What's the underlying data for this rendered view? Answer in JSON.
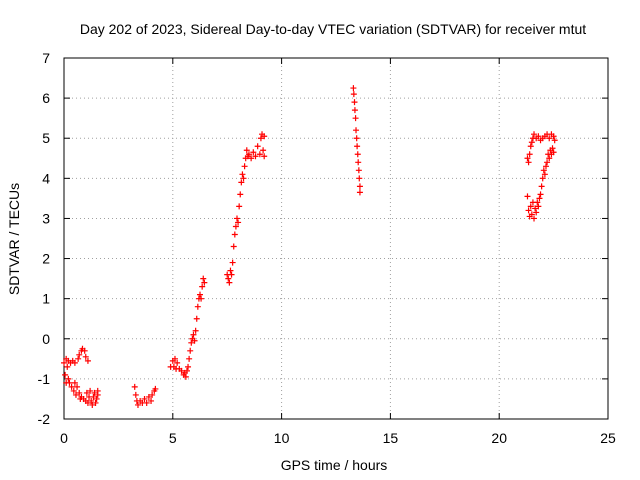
{
  "chart_data": {
    "type": "scatter",
    "title": "Day 202 of 2023, Sidereal Day-to-day VTEC variation (SDTVAR) for receiver mtut",
    "xlabel": "GPS time / hours",
    "ylabel": "SDTVAR / TECUs",
    "xlim": [
      0,
      25
    ],
    "ylim": [
      -2,
      7
    ],
    "xticks": [
      0,
      5,
      10,
      15,
      20,
      25
    ],
    "yticks": [
      -2,
      -1,
      0,
      1,
      2,
      3,
      4,
      5,
      6,
      7
    ],
    "grid": true,
    "marker": "plus",
    "color": "#ff0000",
    "series": [
      {
        "name": "SDTVAR",
        "points": [
          [
            0.0,
            -0.6
          ],
          [
            0.05,
            -0.9
          ],
          [
            0.1,
            -1.1
          ],
          [
            0.1,
            -0.5
          ],
          [
            0.15,
            -0.7
          ],
          [
            0.2,
            -1.0
          ],
          [
            0.2,
            -0.55
          ],
          [
            0.25,
            -1.1
          ],
          [
            0.3,
            -0.6
          ],
          [
            0.35,
            -1.2
          ],
          [
            0.4,
            -0.55
          ],
          [
            0.45,
            -1.3
          ],
          [
            0.5,
            -1.1
          ],
          [
            0.5,
            -0.6
          ],
          [
            0.55,
            -1.4
          ],
          [
            0.6,
            -1.2
          ],
          [
            0.65,
            -0.5
          ],
          [
            0.7,
            -1.35
          ],
          [
            0.7,
            -0.4
          ],
          [
            0.75,
            -1.5
          ],
          [
            0.8,
            -0.3
          ],
          [
            0.8,
            -1.45
          ],
          [
            0.85,
            -0.25
          ],
          [
            0.9,
            -1.5
          ],
          [
            0.95,
            -0.3
          ],
          [
            1.0,
            -1.55
          ],
          [
            1.0,
            -0.45
          ],
          [
            1.05,
            -1.35
          ],
          [
            1.1,
            -0.55
          ],
          [
            1.1,
            -1.6
          ],
          [
            1.15,
            -1.45
          ],
          [
            1.2,
            -1.3
          ],
          [
            1.25,
            -1.55
          ],
          [
            1.3,
            -1.65
          ],
          [
            1.35,
            -1.45
          ],
          [
            1.4,
            -1.35
          ],
          [
            1.45,
            -1.6
          ],
          [
            1.5,
            -1.5
          ],
          [
            1.55,
            -1.3
          ],
          [
            1.55,
            -1.4
          ],
          [
            3.25,
            -1.2
          ],
          [
            3.3,
            -1.4
          ],
          [
            3.35,
            -1.55
          ],
          [
            3.4,
            -1.65
          ],
          [
            3.5,
            -1.55
          ],
          [
            3.6,
            -1.6
          ],
          [
            3.7,
            -1.5
          ],
          [
            3.8,
            -1.6
          ],
          [
            3.9,
            -1.45
          ],
          [
            4.0,
            -1.55
          ],
          [
            4.05,
            -1.4
          ],
          [
            4.15,
            -1.3
          ],
          [
            4.2,
            -1.25
          ],
          [
            4.9,
            -0.7
          ],
          [
            5.0,
            -0.55
          ],
          [
            5.05,
            -0.7
          ],
          [
            5.1,
            -0.5
          ],
          [
            5.15,
            -0.75
          ],
          [
            5.2,
            -0.6
          ],
          [
            5.3,
            -0.75
          ],
          [
            5.4,
            -0.8
          ],
          [
            5.5,
            -0.9
          ],
          [
            5.55,
            -0.85
          ],
          [
            5.6,
            -0.95
          ],
          [
            5.65,
            -0.8
          ],
          [
            5.7,
            -0.7
          ],
          [
            5.75,
            -0.5
          ],
          [
            5.8,
            -0.3
          ],
          [
            5.85,
            -0.1
          ],
          [
            5.9,
            0.0
          ],
          [
            5.95,
            0.1
          ],
          [
            6.0,
            -0.05
          ],
          [
            6.05,
            0.2
          ],
          [
            6.1,
            0.5
          ],
          [
            6.15,
            0.8
          ],
          [
            6.2,
            1.0
          ],
          [
            6.25,
            1.1
          ],
          [
            6.3,
            1.0
          ],
          [
            6.35,
            1.3
          ],
          [
            6.4,
            1.5
          ],
          [
            6.45,
            1.4
          ],
          [
            7.5,
            1.6
          ],
          [
            7.55,
            1.5
          ],
          [
            7.6,
            1.4
          ],
          [
            7.65,
            1.7
          ],
          [
            7.7,
            1.6
          ],
          [
            7.75,
            1.9
          ],
          [
            7.8,
            2.3
          ],
          [
            7.85,
            2.6
          ],
          [
            7.9,
            2.8
          ],
          [
            7.95,
            3.0
          ],
          [
            8.0,
            2.9
          ],
          [
            8.05,
            3.3
          ],
          [
            8.1,
            3.6
          ],
          [
            8.15,
            3.9
          ],
          [
            8.2,
            4.1
          ],
          [
            8.25,
            4.0
          ],
          [
            8.3,
            4.3
          ],
          [
            8.35,
            4.5
          ],
          [
            8.4,
            4.7
          ],
          [
            8.45,
            4.55
          ],
          [
            8.5,
            4.6
          ],
          [
            8.6,
            4.5
          ],
          [
            8.7,
            4.65
          ],
          [
            8.8,
            4.55
          ],
          [
            8.9,
            4.8
          ],
          [
            9.0,
            4.6
          ],
          [
            9.05,
            5.0
          ],
          [
            9.1,
            5.1
          ],
          [
            9.15,
            4.7
          ],
          [
            9.2,
            5.05
          ],
          [
            9.2,
            4.55
          ],
          [
            13.3,
            6.25
          ],
          [
            13.32,
            6.1
          ],
          [
            13.35,
            5.9
          ],
          [
            13.37,
            5.7
          ],
          [
            13.4,
            5.5
          ],
          [
            13.42,
            5.2
          ],
          [
            13.45,
            5.0
          ],
          [
            13.47,
            4.8
          ],
          [
            13.5,
            4.6
          ],
          [
            13.52,
            4.4
          ],
          [
            13.55,
            4.2
          ],
          [
            13.57,
            4.0
          ],
          [
            13.6,
            3.8
          ],
          [
            13.6,
            3.65
          ],
          [
            21.3,
            3.55
          ],
          [
            21.35,
            3.2
          ],
          [
            21.4,
            3.05
          ],
          [
            21.45,
            3.3
          ],
          [
            21.5,
            3.1
          ],
          [
            21.55,
            3.4
          ],
          [
            21.6,
            3.0
          ],
          [
            21.65,
            3.25
          ],
          [
            21.7,
            3.15
          ],
          [
            21.75,
            3.4
          ],
          [
            21.8,
            3.3
          ],
          [
            21.85,
            3.5
          ],
          [
            21.9,
            3.6
          ],
          [
            21.95,
            3.8
          ],
          [
            22.0,
            4.0
          ],
          [
            22.05,
            4.2
          ],
          [
            22.1,
            4.1
          ],
          [
            22.15,
            4.3
          ],
          [
            22.2,
            4.4
          ],
          [
            22.25,
            4.6
          ],
          [
            22.3,
            4.5
          ],
          [
            22.35,
            4.7
          ],
          [
            22.4,
            4.6
          ],
          [
            22.45,
            4.75
          ],
          [
            22.5,
            4.65
          ],
          [
            22.55,
            4.95
          ],
          [
            22.5,
            5.05
          ],
          [
            22.4,
            5.1
          ],
          [
            22.3,
            5.0
          ],
          [
            22.2,
            5.1
          ],
          [
            22.1,
            5.05
          ],
          [
            22.0,
            5.0
          ],
          [
            21.9,
            4.95
          ],
          [
            21.8,
            5.05
          ],
          [
            21.7,
            5.0
          ],
          [
            21.6,
            5.1
          ],
          [
            21.55,
            5.0
          ],
          [
            21.5,
            4.9
          ],
          [
            21.45,
            4.8
          ],
          [
            21.4,
            4.6
          ],
          [
            21.35,
            4.4
          ],
          [
            21.3,
            4.5
          ]
        ]
      }
    ]
  }
}
